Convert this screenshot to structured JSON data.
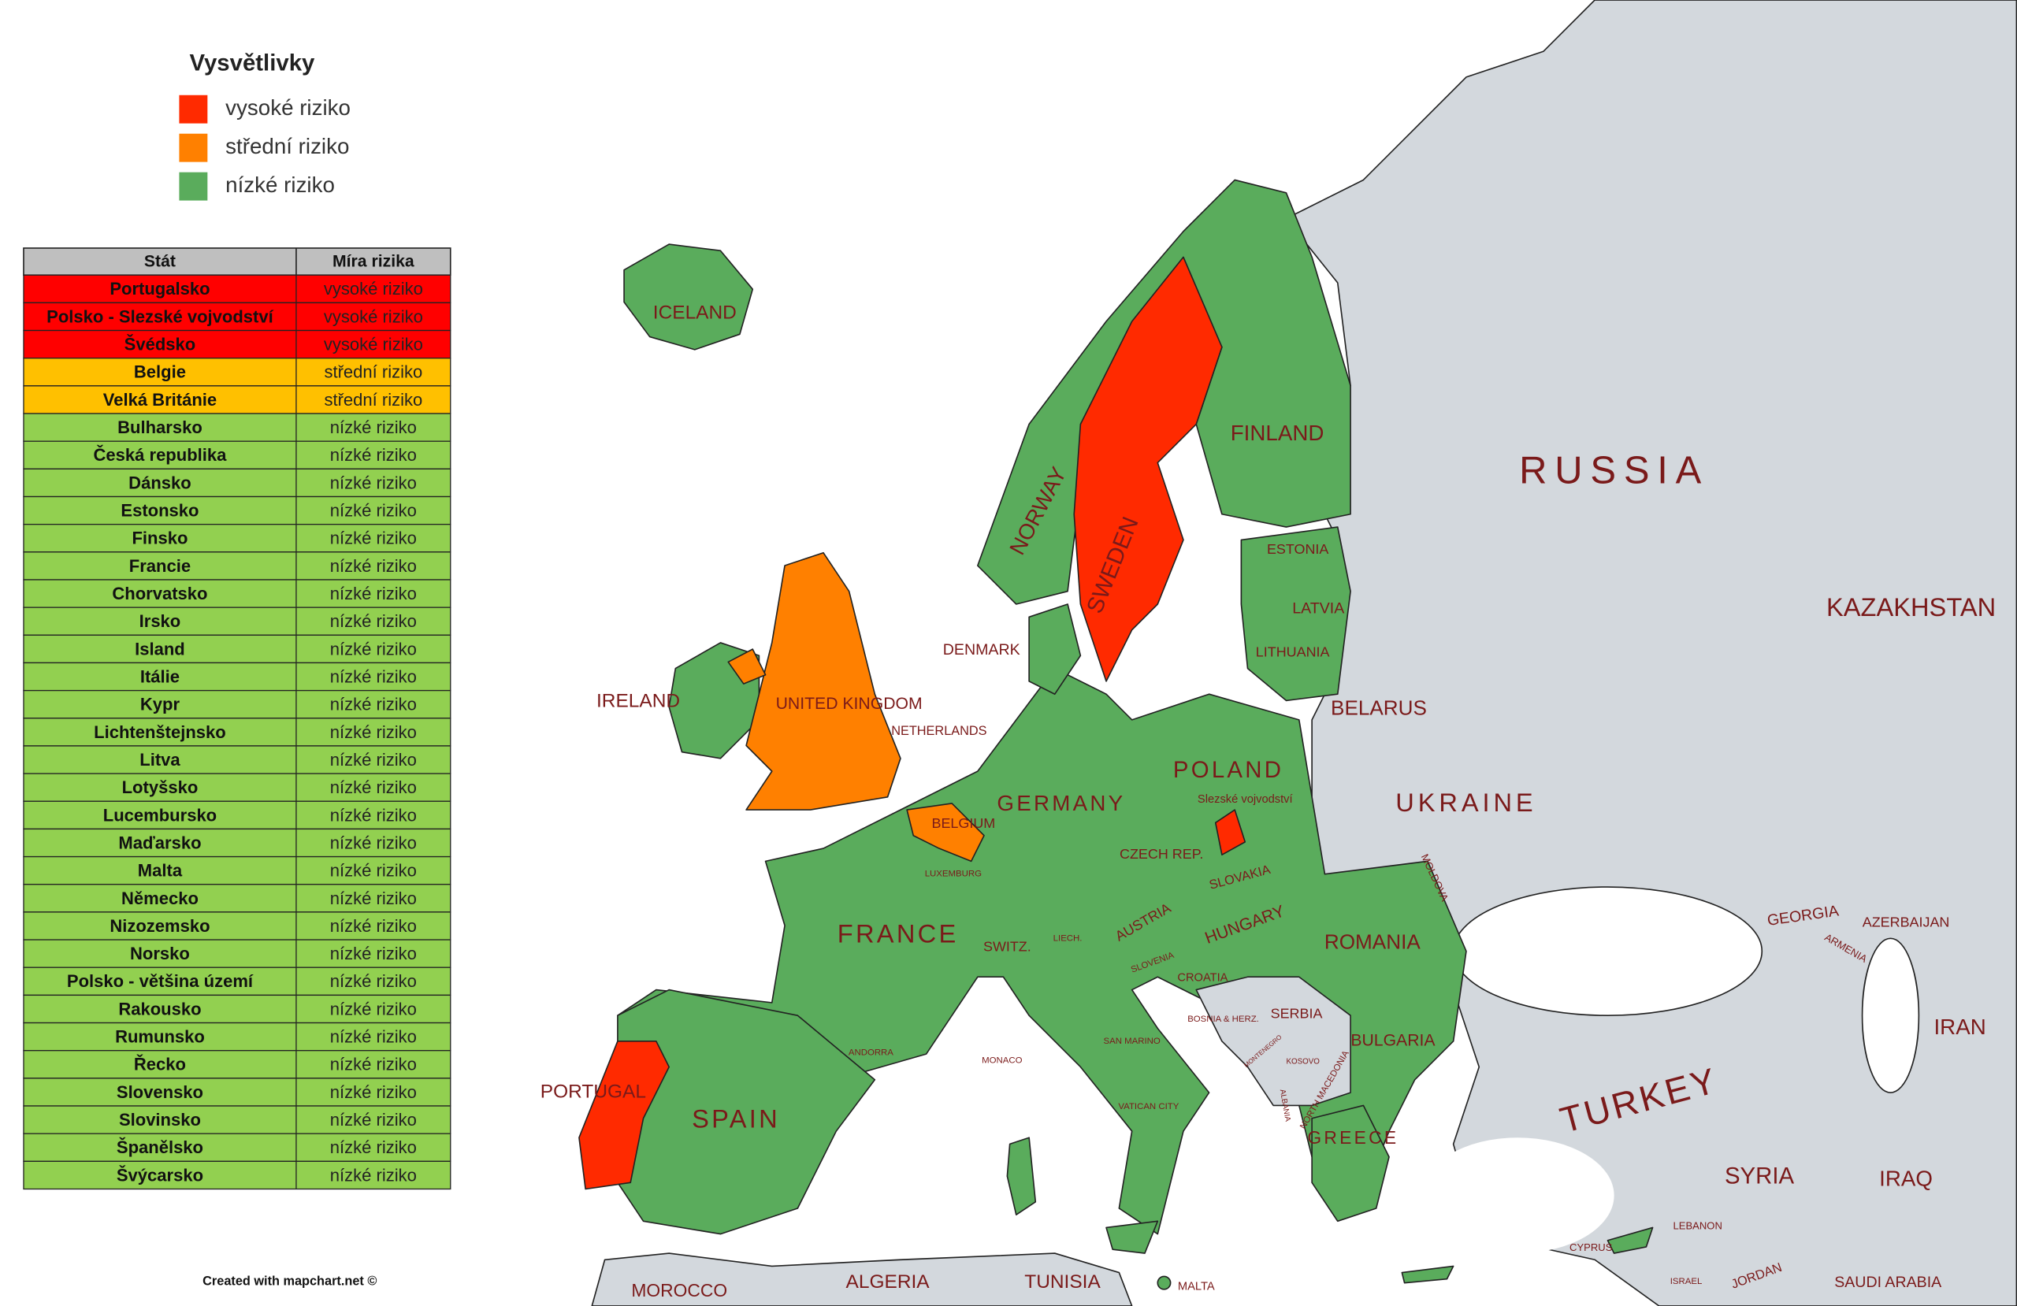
{
  "legend": {
    "title": "Vysvětlivky",
    "items": [
      {
        "label": "vysoké riziko",
        "color": "#ff2a00",
        "table_color": "#ff0000"
      },
      {
        "label": "střední riziko",
        "color": "#ff8000",
        "table_color": "#ffc000"
      },
      {
        "label": "nízké riziko",
        "color": "#5aac5c",
        "table_color": "#92d050"
      }
    ]
  },
  "table": {
    "headers": [
      "Stát",
      "Míra rizika"
    ],
    "rows": [
      [
        "Portugalsko",
        "vysoké riziko"
      ],
      [
        "Polsko - Slezské vojvodství",
        "vysoké riziko"
      ],
      [
        "Švédsko",
        "vysoké riziko"
      ],
      [
        "Belgie",
        "střední riziko"
      ],
      [
        "Velká Británie",
        "střední riziko"
      ],
      [
        "Bulharsko",
        "nízké riziko"
      ],
      [
        "Česká republika",
        "nízké riziko"
      ],
      [
        "Dánsko",
        "nízké riziko"
      ],
      [
        "Estonsko",
        "nízké riziko"
      ],
      [
        "Finsko",
        "nízké riziko"
      ],
      [
        "Francie",
        "nízké riziko"
      ],
      [
        "Chorvatsko",
        "nízké riziko"
      ],
      [
        "Irsko",
        "nízké riziko"
      ],
      [
        "Island",
        "nízké riziko"
      ],
      [
        "Itálie",
        "nízké riziko"
      ],
      [
        "Kypr",
        "nízké riziko"
      ],
      [
        "Lichtenštejnsko",
        "nízké riziko"
      ],
      [
        "Litva",
        "nízké riziko"
      ],
      [
        "Lotyšsko",
        "nízké riziko"
      ],
      [
        "Lucembursko",
        "nízké riziko"
      ],
      [
        "Maďarsko",
        "nízké riziko"
      ],
      [
        "Malta",
        "nízké riziko"
      ],
      [
        "Německo",
        "nízké riziko"
      ],
      [
        "Nizozemsko",
        "nízké riziko"
      ],
      [
        "Norsko",
        "nízké riziko"
      ],
      [
        "Polsko - většina území",
        "nízké riziko"
      ],
      [
        "Rakousko",
        "nízké riziko"
      ],
      [
        "Rumunsko",
        "nízké riziko"
      ],
      [
        "Řecko",
        "nízké riziko"
      ],
      [
        "Slovensko",
        "nízké riziko"
      ],
      [
        "Slovinsko",
        "nízké riziko"
      ],
      [
        "Španělsko",
        "nízké riziko"
      ],
      [
        "Švýcarsko",
        "nízké riziko"
      ]
    ]
  },
  "map": {
    "labels": [
      "ICELAND",
      "IRELAND",
      "UNITED KINGDOM",
      "NORWAY",
      "SWEDEN",
      "FINLAND",
      "RUSSIA",
      "ESTONIA",
      "LATVIA",
      "LITHUANIA",
      "DENMARK",
      "BELARUS",
      "NETHERLANDS",
      "POLAND",
      "Slezské vojvodství",
      "GERMANY",
      "UKRAINE",
      "BELGIUM",
      "LUXEMBURG",
      "CZECH REP.",
      "MOLDOVA",
      "SLOVAKIA",
      "KAZAKHSTAN",
      "FRANCE",
      "AUSTRIA",
      "HUNGARY",
      "ROMANIA",
      "GEORGIA",
      "AZERBAIJAN",
      "ARMENIA",
      "SWITZ.",
      "LIECH.",
      "SLOVENIA",
      "CROATIA",
      "BOSNIA & HERZ.",
      "SERBIA",
      "MONTENEGRO",
      "KOSOVO",
      "NORTH MACEDONIA",
      "ALBANIA",
      "BULGARIA",
      "IRAN",
      "SAN MARINO",
      "ANDORRA",
      "MONACO",
      "TURKEY",
      "PORTUGAL",
      "SPAIN",
      "VATICAN CITY",
      "GREECE",
      "SYRIA",
      "IRAQ",
      "CYPRUS",
      "LEBANON",
      "ISRAEL",
      "JORDAN",
      "SAUDI ARABIA",
      "MOROCCO",
      "ALGERIA",
      "TUNISIA",
      "MALTA"
    ]
  },
  "credit": "Created with mapchart.net ©"
}
